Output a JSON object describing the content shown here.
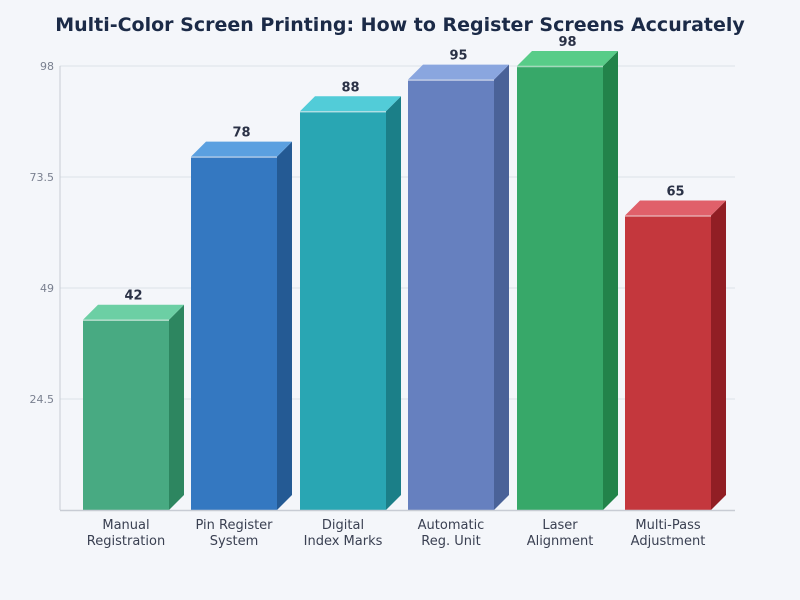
{
  "chart_data": {
    "type": "bar",
    "title": "Multi-Color Screen Printing: How to Register Screens Accurately",
    "xlabel": "",
    "ylabel": "",
    "categories": [
      [
        "Manual",
        "Registration"
      ],
      [
        "Pin Register",
        "System"
      ],
      [
        "Digital",
        "Index Marks"
      ],
      [
        "Automatic",
        "Reg. Unit"
      ],
      [
        "Laser",
        "Alignment"
      ],
      [
        "Multi-Pass",
        "Adjustment"
      ]
    ],
    "values": [
      42,
      78,
      88,
      95,
      98,
      65
    ],
    "ylim": [
      0,
      98
    ],
    "yticks": [
      "24.5",
      "49",
      "73.5",
      "98"
    ],
    "ytick_values": [
      24.5,
      49,
      73.5,
      98
    ],
    "grid": true,
    "legend": "none",
    "style": "3d-bar",
    "colors": [
      {
        "front": "#48aa82",
        "top": "#6ccfa4",
        "side": "#2d8660"
      },
      {
        "front": "#3478c1",
        "top": "#5ba0e0",
        "side": "#245a94"
      },
      {
        "front": "#29a6b3",
        "top": "#52ccd8",
        "side": "#1b7f88"
      },
      {
        "front": "#6680bf",
        "top": "#8aa6df",
        "side": "#4a6298"
      },
      {
        "front": "#37a869",
        "top": "#58cc88",
        "side": "#22834a"
      },
      {
        "front": "#c4373d",
        "top": "#e0606a",
        "side": "#911e24"
      }
    ]
  }
}
